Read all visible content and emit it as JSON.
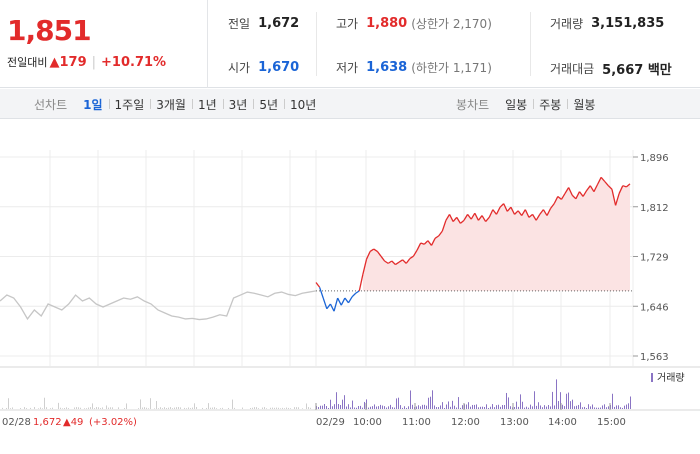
{
  "price": {
    "current": "1,851",
    "change_label": "전일대비",
    "change_arrow": "▲",
    "change_value": "179",
    "change_pct": "+10.71%"
  },
  "stats": {
    "prev_close": {
      "label": "전일",
      "value": "1,672"
    },
    "open": {
      "label": "시가",
      "value": "1,670"
    },
    "high": {
      "label": "고가",
      "value": "1,880",
      "sub": "(상한가 2,170)"
    },
    "low": {
      "label": "저가",
      "value": "1,638",
      "sub": "(하한가 1,171)"
    },
    "volume": {
      "label": "거래량",
      "value": "3,151,835"
    },
    "amount": {
      "label": "거래대금",
      "value": "5,667 백만"
    }
  },
  "toolbar": {
    "line_label": "선차트",
    "line_periods": [
      "1일",
      "1주일",
      "3개월",
      "1년",
      "3년",
      "5년",
      "10년"
    ],
    "active_period": "1일",
    "candle_label": "봉차트",
    "candle_periods": [
      "일봉",
      "주봉",
      "월봉"
    ]
  },
  "chart_data": {
    "type": "line",
    "y_ticks": [
      "1,896",
      "1,812",
      "1,729",
      "1,646",
      "1,563"
    ],
    "ylim": [
      1563,
      1896
    ],
    "x_ticks": [
      "02/29",
      "10:00",
      "11:00",
      "12:00",
      "13:00",
      "14:00",
      "15:00"
    ],
    "prev_day_label": "02/28",
    "prev_day_close": "1,672",
    "prev_day_change": "▲49",
    "prev_day_change_pct": "(+3.02%)",
    "reference_price": 1672,
    "volume_legend": "거래량",
    "prev_day_series": [
      [
        0,
        1655
      ],
      [
        3,
        1665
      ],
      [
        6,
        1660
      ],
      [
        9,
        1645
      ],
      [
        12,
        1625
      ],
      [
        15,
        1640
      ],
      [
        18,
        1630
      ],
      [
        21,
        1650
      ],
      [
        24,
        1645
      ],
      [
        27,
        1640
      ],
      [
        30,
        1650
      ],
      [
        33,
        1665
      ],
      [
        36,
        1655
      ],
      [
        39,
        1660
      ],
      [
        42,
        1650
      ],
      [
        45,
        1645
      ],
      [
        48,
        1650
      ],
      [
        51,
        1655
      ],
      [
        54,
        1660
      ],
      [
        57,
        1658
      ],
      [
        60,
        1662
      ],
      [
        63,
        1655
      ],
      [
        66,
        1650
      ],
      [
        69,
        1640
      ],
      [
        72,
        1635
      ],
      [
        75,
        1630
      ],
      [
        78,
        1628
      ],
      [
        81,
        1625
      ],
      [
        84,
        1626
      ],
      [
        87,
        1624
      ],
      [
        90,
        1625
      ],
      [
        93,
        1628
      ],
      [
        96,
        1632
      ],
      [
        99,
        1630
      ],
      [
        102,
        1660
      ],
      [
        105,
        1665
      ],
      [
        108,
        1670
      ],
      [
        111,
        1668
      ],
      [
        114,
        1665
      ],
      [
        117,
        1662
      ],
      [
        120,
        1668
      ],
      [
        123,
        1670
      ],
      [
        126,
        1666
      ],
      [
        129,
        1664
      ],
      [
        132,
        1668
      ],
      [
        135,
        1670
      ],
      [
        138,
        1672
      ]
    ],
    "day_series": [
      [
        0,
        1686
      ],
      [
        2,
        1678
      ],
      [
        4,
        1660
      ],
      [
        6,
        1642
      ],
      [
        8,
        1650
      ],
      [
        10,
        1638
      ],
      [
        12,
        1660
      ],
      [
        14,
        1648
      ],
      [
        16,
        1660
      ],
      [
        18,
        1652
      ],
      [
        20,
        1662
      ],
      [
        22,
        1668
      ],
      [
        24,
        1672
      ],
      [
        26,
        1700
      ],
      [
        28,
        1725
      ],
      [
        30,
        1738
      ],
      [
        32,
        1742
      ],
      [
        34,
        1738
      ],
      [
        36,
        1730
      ],
      [
        38,
        1722
      ],
      [
        40,
        1718
      ],
      [
        42,
        1722
      ],
      [
        44,
        1716
      ],
      [
        46,
        1720
      ],
      [
        48,
        1724
      ],
      [
        50,
        1718
      ],
      [
        52,
        1726
      ],
      [
        54,
        1730
      ],
      [
        56,
        1740
      ],
      [
        58,
        1752
      ],
      [
        60,
        1750
      ],
      [
        62,
        1756
      ],
      [
        64,
        1748
      ],
      [
        66,
        1760
      ],
      [
        68,
        1764
      ],
      [
        70,
        1772
      ],
      [
        72,
        1790
      ],
      [
        74,
        1800
      ],
      [
        76,
        1788
      ],
      [
        78,
        1795
      ],
      [
        80,
        1785
      ],
      [
        82,
        1790
      ],
      [
        84,
        1800
      ],
      [
        86,
        1792
      ],
      [
        88,
        1802
      ],
      [
        90,
        1790
      ],
      [
        92,
        1798
      ],
      [
        94,
        1788
      ],
      [
        96,
        1795
      ],
      [
        98,
        1808
      ],
      [
        100,
        1800
      ],
      [
        102,
        1812
      ],
      [
        104,
        1818
      ],
      [
        106,
        1805
      ],
      [
        108,
        1812
      ],
      [
        110,
        1800
      ],
      [
        112,
        1806
      ],
      [
        114,
        1798
      ],
      [
        116,
        1808
      ],
      [
        118,
        1795
      ],
      [
        120,
        1800
      ],
      [
        122,
        1790
      ],
      [
        124,
        1800
      ],
      [
        126,
        1808
      ],
      [
        128,
        1798
      ],
      [
        130,
        1810
      ],
      [
        132,
        1818
      ],
      [
        134,
        1830
      ],
      [
        136,
        1825
      ],
      [
        138,
        1835
      ],
      [
        140,
        1845
      ],
      [
        142,
        1832
      ],
      [
        144,
        1826
      ],
      [
        146,
        1838
      ],
      [
        148,
        1830
      ],
      [
        150,
        1840
      ],
      [
        152,
        1848
      ],
      [
        154,
        1838
      ],
      [
        156,
        1850
      ],
      [
        158,
        1862
      ],
      [
        160,
        1855
      ],
      [
        162,
        1848
      ],
      [
        164,
        1842
      ],
      [
        166,
        1815
      ],
      [
        168,
        1835
      ],
      [
        170,
        1848
      ],
      [
        172,
        1846
      ],
      [
        174,
        1851
      ]
    ]
  }
}
